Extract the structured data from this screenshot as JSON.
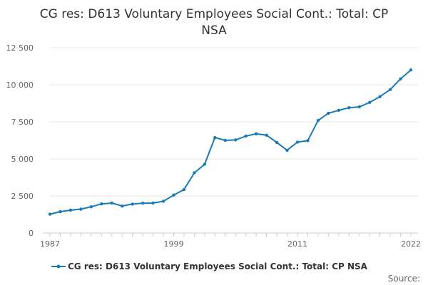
{
  "chart_data": {
    "type": "line",
    "title_lines": [
      "CG res: D613 Voluntary Employees Social Cont.: Total: CP",
      "NSA"
    ],
    "x": [
      1987,
      1988,
      1989,
      1990,
      1991,
      1992,
      1993,
      1994,
      1995,
      1996,
      1997,
      1998,
      1999,
      2000,
      2001,
      2002,
      2003,
      2004,
      2005,
      2006,
      2007,
      2008,
      2009,
      2010,
      2011,
      2012,
      2013,
      2014,
      2015,
      2016,
      2017,
      2018,
      2019,
      2020,
      2021,
      2022
    ],
    "series": [
      {
        "name": "CG res: D613 Voluntary Employees Social Cont.: Total: CP NSA",
        "color": "#1a7ab8",
        "values": [
          1270,
          1440,
          1540,
          1610,
          1770,
          1960,
          2020,
          1820,
          1950,
          2010,
          2020,
          2140,
          2560,
          2930,
          4060,
          4640,
          6440,
          6250,
          6280,
          6540,
          6690,
          6600,
          6110,
          5580,
          6130,
          6230,
          7590,
          8080,
          8280,
          8450,
          8510,
          8810,
          9200,
          9680,
          10400,
          11000
        ]
      }
    ],
    "x_ticks": [
      "1987",
      "1999",
      "2011",
      "2022"
    ],
    "x_tick_values": [
      1987,
      1999,
      2011,
      2022
    ],
    "y_ticks": [
      "0",
      "2 500",
      "5 000",
      "7 500",
      "10 000",
      "12 500"
    ],
    "y_tick_values": [
      0,
      2500,
      5000,
      7500,
      10000,
      12500
    ],
    "xlim": [
      1987,
      2022
    ],
    "ylim": [
      0,
      12500
    ],
    "grid": "horizontal",
    "legend_position": "bottom"
  },
  "footer": {
    "source_label": "Source:"
  }
}
